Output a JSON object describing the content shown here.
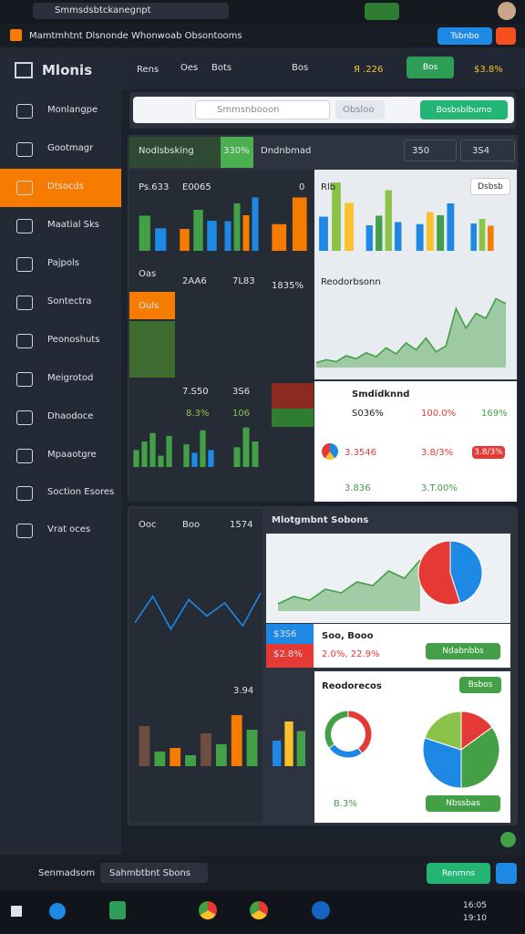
{
  "browser": {
    "tab": "Smmsdsbtckanegnpt"
  },
  "app_header": {
    "title": "Mamtmhtnt Dlsnonde",
    "subtitle": "Whonwoab Obsontooms",
    "button": "Tsbnbo"
  },
  "sidebar": {
    "logo": "Mlonis",
    "items": [
      "Monlangpe",
      "Gootmagr",
      "Dtsocds",
      "Maatial Sks",
      "Pajpols",
      "Sontectra",
      "Peonoshuts",
      "Meigrotod",
      "Dhaodoce",
      "Mpaaotgre",
      "Soction Esores",
      "Vrat oces"
    ]
  },
  "toolbar": {
    "items": [
      "Rens",
      "Oes",
      "Bots",
      "Bos"
    ],
    "value": "Я .226",
    "button": "Bos",
    "value2": "$3.8%"
  },
  "search": {
    "placeholder": "Smmsnbooon",
    "filter": "Obsloo",
    "button": "Bosbsblbumo"
  },
  "panel1": {
    "tab": "Nodlsbsking",
    "tab_value": "330%",
    "title": "Dndnbmad",
    "select1": "350",
    "select2": "3S4",
    "labels": [
      "Ps.633",
      "E0065",
      "0",
      "Rlb",
      "Oas",
      "2AA6",
      "7L83",
      "1835%",
      "Ouls",
      "7.S50",
      "3S6",
      "8.3%",
      "106"
    ],
    "light_button": "Dsbsb",
    "line_title": "Reodorbsonn",
    "card": {
      "title": "Smdidknnd",
      "r1": [
        "S036%",
        "100.0%",
        "169%"
      ],
      "r2": [
        "3.3546",
        "3.8/3%"
      ],
      "r2_button": "3.8/3%",
      "r3": [
        "3.836",
        "3.T.00%"
      ]
    }
  },
  "panel2": {
    "labels": [
      "Ooc",
      "Boo",
      "1574",
      "$3S6",
      "$2.8%",
      "3.94"
    ],
    "title": "Mlotgmbnt Sobons",
    "stats": [
      "Soo, Booo",
      "2.0%, 22.9%"
    ],
    "stats_button": "Ndabnbbs",
    "donut_title": "Reodorecos",
    "donut_button": "Bsbos",
    "donut_value": "B.3%",
    "pie_button": "Nbssbas"
  },
  "bottom": {
    "label": "Senmadsom",
    "field": "Sahmbtbnt Sbons",
    "button": "Renmns"
  },
  "taskbar": {
    "time": "16:05",
    "date": "19:10"
  },
  "charts": [
    {
      "type": "bar",
      "values": [
        70,
        45
      ],
      "colors": [
        "#43a047",
        "#1e88e5"
      ],
      "ylim": [
        0,
        100
      ]
    },
    {
      "type": "bar",
      "values": [
        40,
        75,
        55
      ],
      "colors": [
        "#f57c00",
        "#43a047",
        "#1e88e5"
      ],
      "ylim": [
        0,
        100
      ]
    },
    {
      "type": "bar",
      "values": [
        50,
        80,
        60,
        90
      ],
      "colors": [
        "#1e88e5",
        "#43a047",
        "#f57c00",
        "#1e88e5"
      ],
      "ylim": [
        0,
        100
      ]
    },
    {
      "type": "bar",
      "values": [
        45,
        90
      ],
      "colors": [
        "#f57c00",
        "#f57c00"
      ],
      "ylim": [
        0,
        100
      ]
    },
    {
      "type": "bar",
      "values": [
        50,
        100,
        70
      ],
      "colors": [
        "#1e88e5",
        "#8bc34a",
        "#fbc02d"
      ],
      "ylim": [
        0,
        100
      ]
    },
    {
      "type": "bar",
      "values": [
        40,
        55,
        95,
        45
      ],
      "colors": [
        "#1e88e5",
        "#43a047",
        "#8bc34a",
        "#1e88e5"
      ],
      "ylim": [
        0,
        100
      ]
    },
    {
      "type": "bar",
      "values": [
        45,
        65,
        60,
        80
      ],
      "colors": [
        "#1e88e5",
        "#fbc02d",
        "#43a047",
        "#1e88e5"
      ],
      "ylim": [
        0,
        100
      ]
    },
    {
      "type": "bar",
      "values": [
        60,
        70,
        55
      ],
      "colors": [
        "#1e88e5",
        "#8bc34a",
        "#f57c00"
      ],
      "ylim": [
        0,
        100
      ]
    },
    {
      "type": "area",
      "values": [
        5,
        8,
        6,
        12,
        9,
        15,
        11,
        20,
        14,
        25,
        18,
        30,
        16,
        22,
        60,
        40,
        55,
        50,
        70,
        65
      ],
      "colors": [
        "#43a047"
      ],
      "ylim": [
        0,
        100
      ]
    },
    {
      "type": "bar",
      "values": [
        30,
        45,
        60,
        20,
        55
      ],
      "colors": [
        "#43a047"
      ],
      "ylim": [
        0,
        100
      ]
    },
    {
      "type": "bar",
      "values": [
        40,
        25,
        65,
        30
      ],
      "colors": [
        "#43a047",
        "#1e88e5"
      ],
      "ylim": [
        0,
        100
      ]
    },
    {
      "type": "bar",
      "values": [
        35,
        70,
        45
      ],
      "colors": [
        "#43a047"
      ],
      "ylim": [
        0,
        100
      ]
    },
    {
      "type": "line",
      "values": [
        20,
        60,
        10,
        55,
        30,
        50,
        15,
        65
      ],
      "colors": [
        "#1e88e5",
        "#fbc02d"
      ],
      "ylim": [
        0,
        100
      ]
    },
    {
      "type": "area",
      "values": [
        10,
        20,
        15,
        30,
        25,
        40,
        35,
        55,
        45,
        70
      ],
      "colors": [
        "#43a047"
      ],
      "ylim": [
        0,
        100
      ]
    },
    {
      "type": "pie",
      "values": [
        45,
        55
      ],
      "colors": [
        "#1e88e5",
        "#e53935"
      ]
    },
    {
      "type": "bar",
      "values": [
        55,
        20,
        25,
        15,
        45,
        30,
        70,
        50
      ],
      "colors": [
        "#6d4c41",
        "#43a047",
        "#f57c00",
        "#43a047"
      ],
      "ylim": [
        0,
        100
      ]
    },
    {
      "type": "bar",
      "values": [
        40,
        70,
        55
      ],
      "colors": [
        "#1e88e5",
        "#fbc02d",
        "#43a047"
      ],
      "ylim": [
        0,
        100
      ]
    },
    {
      "type": "donut",
      "values": [
        40,
        25,
        35
      ],
      "colors": [
        "#e53935",
        "#1e88e5",
        "#43a047"
      ]
    },
    {
      "type": "pie",
      "values": [
        15,
        35,
        30,
        20
      ],
      "colors": [
        "#e53935",
        "#43a047",
        "#1e88e5",
        "#8bc34a"
      ]
    }
  ]
}
